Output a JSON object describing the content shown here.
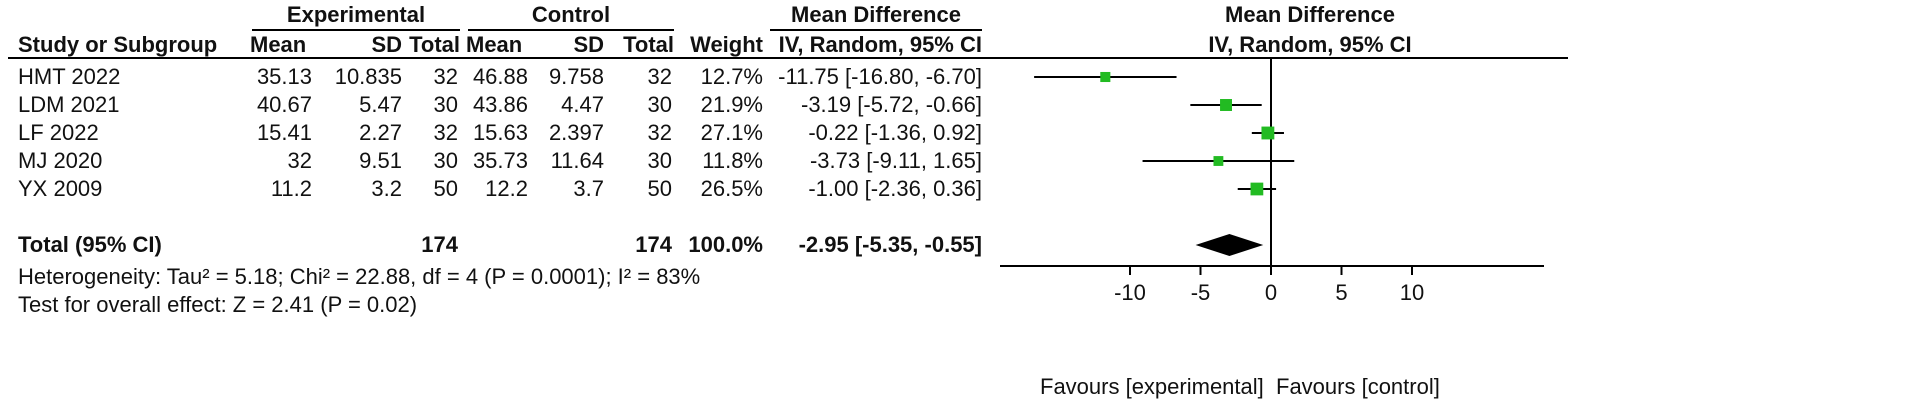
{
  "headers": {
    "experimental": "Experimental",
    "control": "Control",
    "mean_difference": "Mean Difference",
    "study_or_subgroup": "Study or Subgroup",
    "mean": "Mean",
    "sd": "SD",
    "total": "Total",
    "weight": "Weight",
    "method": "IV, Random, 95% CI",
    "plot_title": "Mean Difference",
    "plot_method": "IV, Random, 95% CI"
  },
  "studies": [
    {
      "name": "HMT 2022",
      "exp_mean": "35.13",
      "exp_sd": "10.835",
      "exp_total": "32",
      "ctrl_mean": "46.88",
      "ctrl_sd": "9.758",
      "ctrl_total": "32",
      "weight": "12.7%",
      "ci_text": "-11.75 [-16.80, -6.70]"
    },
    {
      "name": "LDM 2021",
      "exp_mean": "40.67",
      "exp_sd": "5.47",
      "exp_total": "30",
      "ctrl_mean": "43.86",
      "ctrl_sd": "4.47",
      "ctrl_total": "30",
      "weight": "21.9%",
      "ci_text": "-3.19 [-5.72, -0.66]"
    },
    {
      "name": "LF 2022",
      "exp_mean": "15.41",
      "exp_sd": "2.27",
      "exp_total": "32",
      "ctrl_mean": "15.63",
      "ctrl_sd": "2.397",
      "ctrl_total": "32",
      "weight": "27.1%",
      "ci_text": "-0.22 [-1.36, 0.92]"
    },
    {
      "name": "MJ 2020",
      "exp_mean": "32",
      "exp_sd": "9.51",
      "exp_total": "30",
      "ctrl_mean": "35.73",
      "ctrl_sd": "11.64",
      "ctrl_total": "30",
      "weight": "11.8%",
      "ci_text": "-3.73 [-9.11, 1.65]"
    },
    {
      "name": "YX 2009",
      "exp_mean": "11.2",
      "exp_sd": "3.2",
      "exp_total": "50",
      "ctrl_mean": "12.2",
      "ctrl_sd": "3.7",
      "ctrl_total": "50",
      "weight": "26.5%",
      "ci_text": "-1.00 [-2.36, 0.36]"
    }
  ],
  "total": {
    "label": "Total (95% CI)",
    "exp_total": "174",
    "ctrl_total": "174",
    "weight": "100.0%",
    "ci_text": "-2.95 [-5.35, -0.55]"
  },
  "heterogeneity": "Heterogeneity: Tau² = 5.18; Chi² = 22.88, df = 4 (P = 0.0001); I² = 83%",
  "overall_effect": "Test for overall effect: Z = 2.41 (P = 0.02)",
  "colors": {
    "marker": "#22bb22",
    "diamond": "#000000",
    "line": "#000000"
  },
  "chart_data": {
    "type": "forest",
    "title": "Mean Difference",
    "subtitle": "IV, Random, 95% CI",
    "xlim": [
      -20,
      20
    ],
    "xticks": [
      -10,
      -5,
      0,
      5,
      10
    ],
    "favours_left": "Favours [experimental]",
    "favours_right": "Favours [control]",
    "studies": [
      {
        "name": "HMT 2022",
        "md": -11.75,
        "lower": -16.8,
        "upper": -6.7,
        "weight": 12.7
      },
      {
        "name": "LDM 2021",
        "md": -3.19,
        "lower": -5.72,
        "upper": -0.66,
        "weight": 21.9
      },
      {
        "name": "LF 2022",
        "md": -0.22,
        "lower": -1.36,
        "upper": 0.92,
        "weight": 27.1
      },
      {
        "name": "MJ 2020",
        "md": -3.73,
        "lower": -9.11,
        "upper": 1.65,
        "weight": 11.8
      },
      {
        "name": "YX 2009",
        "md": -1.0,
        "lower": -2.36,
        "upper": 0.36,
        "weight": 26.5
      }
    ],
    "pooled": {
      "md": -2.95,
      "lower": -5.35,
      "upper": -0.55
    }
  }
}
